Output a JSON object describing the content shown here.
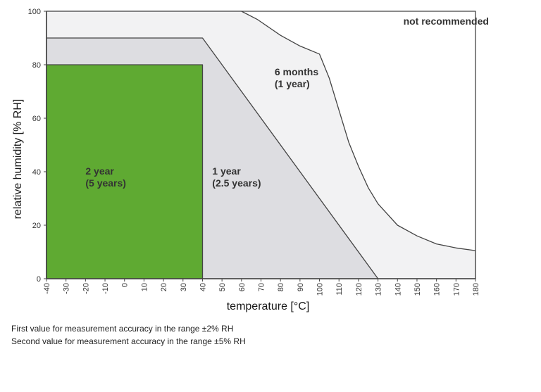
{
  "chart_data": {
    "type": "area",
    "xlabel": "temperature [°C]",
    "ylabel": "relative humidity [% RH]",
    "xlim": [
      -40,
      180
    ],
    "ylim": [
      0,
      100
    ],
    "xticks": [
      -40,
      -30,
      -20,
      -10,
      0,
      10,
      20,
      30,
      40,
      50,
      60,
      70,
      80,
      90,
      100,
      110,
      120,
      130,
      140,
      150,
      160,
      170,
      180
    ],
    "yticks": [
      0,
      20,
      40,
      60,
      80,
      100
    ],
    "regions": [
      {
        "name": "not recommended",
        "lines": [
          "not recommended"
        ],
        "color": "#ffffff",
        "label_pos": [
          143,
          95
        ],
        "boundary": [
          [
            -40,
            100
          ],
          [
            180,
            100
          ],
          [
            180,
            0
          ],
          [
            -40,
            0
          ]
        ]
      },
      {
        "name": "6 months (1 year)",
        "lines": [
          "6 months",
          "(1 year)"
        ],
        "color": "#f2f2f3",
        "label_pos": [
          77,
          76
        ],
        "boundary": [
          [
            -40,
            100
          ],
          [
            60,
            100
          ],
          [
            68,
            97
          ],
          [
            80,
            91
          ],
          [
            90,
            87
          ],
          [
            100,
            84
          ],
          [
            105,
            75
          ],
          [
            110,
            63
          ],
          [
            115,
            51
          ],
          [
            120,
            42
          ],
          [
            125,
            34
          ],
          [
            130,
            28
          ],
          [
            140,
            20
          ],
          [
            150,
            16
          ],
          [
            160,
            13
          ],
          [
            170,
            11.5
          ],
          [
            180,
            10.5
          ],
          [
            180,
            0
          ],
          [
            -40,
            0
          ]
        ]
      },
      {
        "name": "1 year (2.5 years)",
        "lines": [
          "1 year",
          "(2.5 years)"
        ],
        "color": "#dddde1",
        "label_pos": [
          45,
          39
        ],
        "boundary": [
          [
            -40,
            90
          ],
          [
            40,
            90
          ],
          [
            130,
            0
          ],
          [
            -40,
            0
          ]
        ]
      },
      {
        "name": "2 year (5 years)",
        "lines": [
          "2 year",
          "(5 years)"
        ],
        "color": "#5faa32",
        "label_pos": [
          -20,
          39
        ],
        "boundary": [
          [
            -40,
            80
          ],
          [
            40,
            80
          ],
          [
            40,
            0
          ],
          [
            -40,
            0
          ]
        ]
      }
    ]
  },
  "footnotes": [
    "First value for measurement accuracy in the range ±2% RH",
    "Second value for measurement accuracy in the range ±5% RH"
  ]
}
